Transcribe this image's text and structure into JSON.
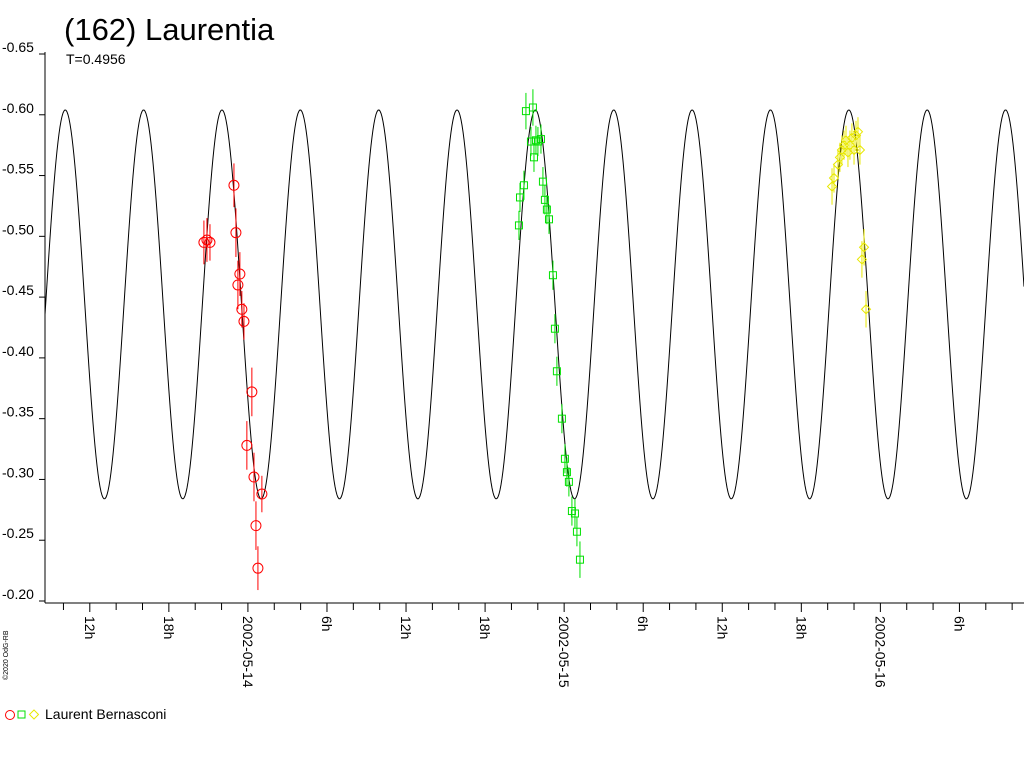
{
  "chart_data": {
    "type": "scatter",
    "title": "(162) Laurentia",
    "subtitle": "T=0.4956",
    "credit": "©2020 OdG-RB",
    "legend": "Laurent Bernasconi",
    "y_inverted": true,
    "ylim": [
      -0.65,
      -0.2
    ],
    "yticks": [
      -0.65,
      {
        "value": -0.6,
        "label": "-0.60"
      },
      -0.55,
      {
        "value": -0.5,
        "label": "-0.50"
      },
      -0.45,
      {
        "value": -0.4,
        "label": "-0.40"
      },
      -0.35,
      {
        "value": -0.3,
        "label": "-0.30"
      },
      -0.25,
      {
        "value": -0.2,
        "label": "-0.20"
      }
    ],
    "xlim": [
      -15.4,
      58.9
    ],
    "xticks": [
      {
        "value": -12,
        "label": "12h"
      },
      {
        "value": -6,
        "label": "18h"
      },
      {
        "value": 0,
        "label": "2002-05-14"
      },
      {
        "value": 6,
        "label": "6h"
      },
      {
        "value": 12,
        "label": "12h"
      },
      {
        "value": 18,
        "label": "18h"
      },
      {
        "value": 24,
        "label": "2002-05-15"
      },
      {
        "value": 30,
        "label": "6h"
      },
      {
        "value": 36,
        "label": "12h"
      },
      {
        "value": 42,
        "label": "18h"
      },
      {
        "value": 48,
        "label": "2002-05-16"
      },
      {
        "value": 54,
        "label": "6h"
      }
    ],
    "xminorticks": [
      -14,
      -10,
      -8,
      -4,
      -2,
      2,
      4,
      8,
      10,
      14,
      16,
      20,
      22,
      26,
      28,
      32,
      34,
      38,
      40,
      44,
      46,
      50,
      52,
      56,
      58
    ],
    "model": {
      "mean": -0.444,
      "amplitude": 0.16,
      "period": 5.947,
      "peak": -1.97
    },
    "series": [
      {
        "marker": "circle",
        "color": "#ff0000",
        "x": [
          -3.34,
          -3.11,
          -2.88,
          -1.06,
          -0.91,
          -0.76,
          -0.61,
          -0.46,
          -0.3,
          -0.08,
          0.3,
          0.46,
          0.61,
          0.76,
          1.06
        ],
        "values": [
          -0.495,
          -0.497,
          -0.495,
          -0.542,
          -0.503,
          -0.46,
          -0.469,
          -0.44,
          -0.43,
          -0.328,
          -0.372,
          -0.302,
          -0.262,
          -0.227,
          -0.288
        ],
        "errors": [
          0.018,
          0.018,
          0.015,
          0.018,
          0.02,
          0.02,
          0.018,
          0.015,
          0.015,
          0.02,
          0.02,
          0.02,
          0.02,
          0.018,
          0.015
        ]
      },
      {
        "marker": "square",
        "color": "#00e000",
        "x": [
          20.57,
          20.65,
          20.95,
          21.1,
          21.48,
          21.63,
          21.71,
          21.86,
          22.01,
          22.24,
          22.39,
          22.54,
          22.69,
          22.85,
          23.15,
          23.3,
          23.45,
          23.83,
          24.06,
          24.21,
          24.36,
          24.59,
          24.82,
          24.97,
          25.2
        ],
        "values": [
          -0.509,
          -0.532,
          -0.542,
          -0.603,
          -0.578,
          -0.606,
          -0.565,
          -0.579,
          -0.578,
          -0.58,
          -0.545,
          -0.53,
          -0.522,
          -0.514,
          -0.468,
          -0.424,
          -0.389,
          -0.35,
          -0.317,
          -0.306,
          -0.298,
          -0.274,
          -0.272,
          -0.257,
          -0.234
        ],
        "errors": [
          0.012,
          0.012,
          0.012,
          0.015,
          0.012,
          0.015,
          0.012,
          0.012,
          0.012,
          0.012,
          0.012,
          0.012,
          0.012,
          0.012,
          0.012,
          0.012,
          0.012,
          0.012,
          0.012,
          0.012,
          0.012,
          0.012,
          0.012,
          0.012,
          0.015
        ]
      },
      {
        "marker": "diamond",
        "color": "#e8e800",
        "x": [
          44.33,
          44.48,
          44.78,
          44.93,
          45.08,
          45.24,
          45.39,
          45.54,
          45.69,
          45.84,
          46.0,
          46.15,
          46.3,
          46.45,
          46.6,
          46.76,
          46.91
        ],
        "values": [
          -0.541,
          -0.548,
          -0.559,
          -0.565,
          -0.571,
          -0.575,
          -0.579,
          -0.569,
          -0.575,
          -0.581,
          -0.571,
          -0.583,
          -0.586,
          -0.571,
          -0.481,
          -0.491,
          -0.44
        ],
        "errors": [
          0.015,
          0.012,
          0.012,
          0.012,
          0.012,
          0.012,
          0.012,
          0.012,
          0.012,
          0.012,
          0.012,
          0.012,
          0.012,
          0.012,
          0.015,
          0.015,
          0.015
        ]
      }
    ]
  }
}
